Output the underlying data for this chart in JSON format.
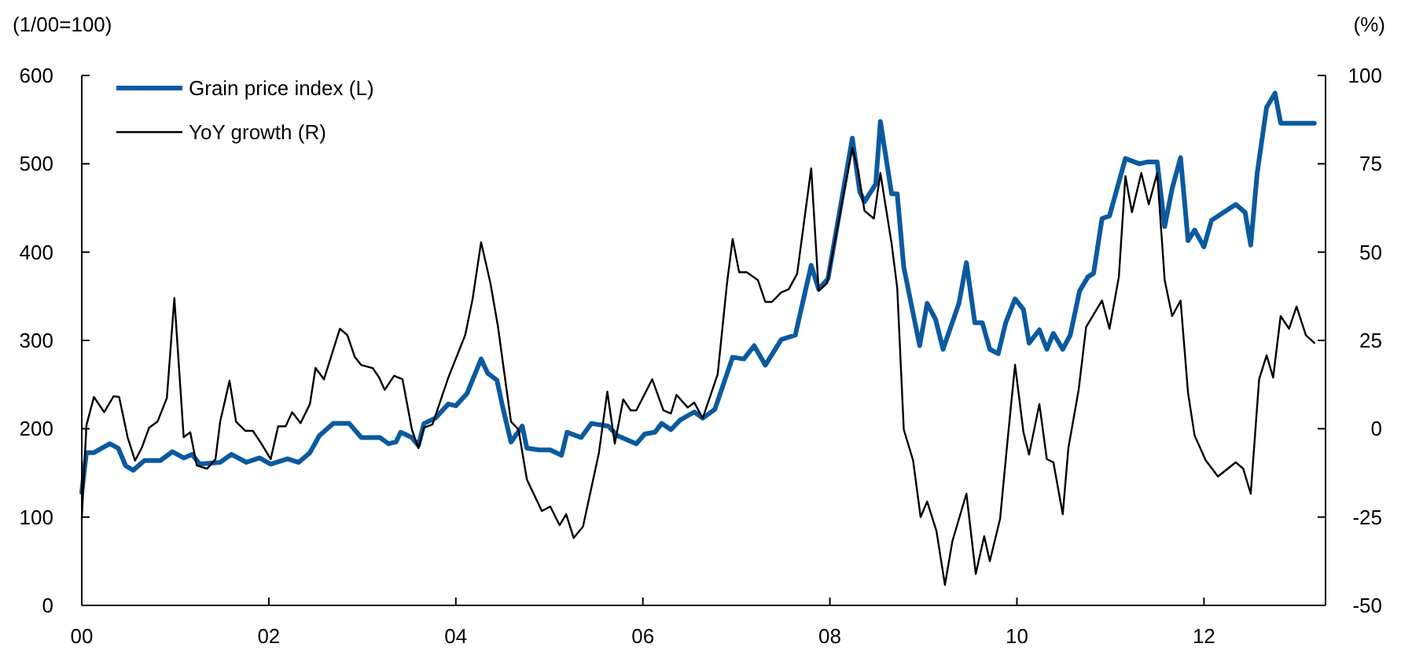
{
  "chart_data": {
    "type": "line",
    "ylabel": "(1/00=100)",
    "y2label": "(%)",
    "legend": "top left",
    "xlim": [
      2000,
      2013.3
    ],
    "xticks": [
      {
        "value": 2000,
        "label": "00"
      },
      {
        "value": 2002,
        "label": "02"
      },
      {
        "value": 2004,
        "label": "04"
      },
      {
        "value": 2006,
        "label": "06"
      },
      {
        "value": 2008,
        "label": "08"
      },
      {
        "value": 2010,
        "label": "10"
      },
      {
        "value": 2012,
        "label": "12"
      }
    ],
    "ylim": [
      0,
      600
    ],
    "yticks": [
      0,
      100,
      200,
      300,
      400,
      500,
      600
    ],
    "y2lim": [
      -50,
      100
    ],
    "y2ticks": [
      -50,
      -25,
      0,
      25,
      50,
      75,
      100
    ],
    "series": [
      {
        "name": "Grain price index (L)",
        "color": "#0a5aa0",
        "axis": "y",
        "x": [
          2000,
          2000.05,
          2000.13,
          2000.3,
          2000.39,
          2000.47,
          2000.55,
          2000.67,
          2000.84,
          2000.97,
          2001.09,
          2001.18,
          2001.26,
          2001.48,
          2001.6,
          2001.76,
          2001.9,
          2002.02,
          2002.2,
          2002.32,
          2002.44,
          2002.54,
          2002.69,
          2002.86,
          2002.99,
          2003.19,
          2003.28,
          2003.36,
          2003.41,
          2003.53,
          2003.6,
          2003.66,
          2003.78,
          2003.92,
          2004,
          2004.12,
          2004.27,
          2004.34,
          2004.44,
          2004.5,
          2004.59,
          2004.71,
          2004.76,
          2004.89,
          2005.01,
          2005.13,
          2005.19,
          2005.34,
          2005.45,
          2005.63,
          2005.73,
          2005.93,
          2006.02,
          2006.13,
          2006.2,
          2006.3,
          2006.4,
          2006.55,
          2006.64,
          2006.77,
          2006.96,
          2007.08,
          2007.19,
          2007.31,
          2007.48,
          2007.63,
          2007.8,
          2007.88,
          2007.98,
          2008.24,
          2008.32,
          2008.37,
          2008.49,
          2008.54,
          2008.66,
          2008.72,
          2008.79,
          2008.96,
          2009.04,
          2009.13,
          2009.21,
          2009.38,
          2009.46,
          2009.55,
          2009.63,
          2009.71,
          2009.8,
          2009.88,
          2009.98,
          2010.07,
          2010.13,
          2010.24,
          2010.32,
          2010.39,
          2010.49,
          2010.57,
          2010.67,
          2010.76,
          2010.82,
          2010.91,
          2010.99,
          2011.16,
          2011.31,
          2011.39,
          2011.5,
          2011.58,
          2011.66,
          2011.75,
          2011.83,
          2011.9,
          2012,
          2012.08,
          2012.34,
          2012.44,
          2012.5,
          2012.57,
          2012.67,
          2012.76,
          2012.82,
          2013.18
        ],
        "values": [
          128,
          173,
          173,
          183,
          178,
          158,
          153,
          164,
          164,
          174,
          167,
          171,
          160,
          162,
          171,
          162,
          167,
          160,
          166,
          162,
          173,
          192,
          206,
          206,
          190,
          190,
          183,
          185,
          196,
          190,
          181,
          206,
          212,
          228,
          226,
          240,
          279,
          263,
          255,
          225,
          185,
          203,
          178,
          176,
          176,
          170,
          196,
          190,
          206,
          203,
          192,
          183,
          194,
          196,
          206,
          199,
          210,
          219,
          212,
          222,
          281,
          279,
          294,
          272,
          301,
          306,
          385,
          358,
          370,
          529,
          468,
          457,
          477,
          548,
          466,
          466,
          383,
          294,
          342,
          324,
          290,
          342,
          388,
          320,
          320,
          290,
          285,
          320,
          347,
          335,
          297,
          312,
          290,
          308,
          290,
          306,
          356,
          372,
          376,
          438,
          441,
          506,
          500,
          502,
          502,
          429,
          472,
          507,
          413,
          425,
          406,
          436,
          454,
          445,
          408,
          490,
          564,
          580,
          546,
          546
        ]
      },
      {
        "name": "YoY growth (R)",
        "color": "#000000",
        "axis": "y2",
        "x": [
          2000,
          2000.05,
          2000.13,
          2000.24,
          2000.34,
          2000.4,
          2000.49,
          2000.57,
          2000.64,
          2000.72,
          2000.81,
          2000.91,
          2000.99,
          2001.09,
          2001.16,
          2001.23,
          2001.34,
          2001.43,
          2001.48,
          2001.58,
          2001.65,
          2001.75,
          2001.83,
          2001.92,
          2002.02,
          2002.1,
          2002.18,
          2002.25,
          2002.34,
          2002.44,
          2002.5,
          2002.59,
          2002.76,
          2002.84,
          2002.92,
          2002.99,
          2003.11,
          2003.18,
          2003.24,
          2003.34,
          2003.43,
          2003.53,
          2003.6,
          2003.66,
          2003.75,
          2003.92,
          2004.1,
          2004.18,
          2004.27,
          2004.37,
          2004.45,
          2004.59,
          2004.67,
          2004.76,
          2004.92,
          2005.01,
          2005.11,
          2005.18,
          2005.26,
          2005.36,
          2005.53,
          2005.62,
          2005.7,
          2005.79,
          2005.87,
          2005.93,
          2006.1,
          2006.22,
          2006.3,
          2006.36,
          2006.48,
          2006.55,
          2006.64,
          2006.8,
          2006.9,
          2006.96,
          2007.03,
          2007.11,
          2007.23,
          2007.31,
          2007.38,
          2007.48,
          2007.56,
          2007.65,
          2007.8,
          2007.88,
          2007.97,
          2008.24,
          2008.3,
          2008.37,
          2008.47,
          2008.54,
          2008.66,
          2008.72,
          2008.79,
          2008.89,
          2008.97,
          2009.04,
          2009.14,
          2009.23,
          2009.31,
          2009.46,
          2009.56,
          2009.65,
          2009.71,
          2009.82,
          2009.9,
          2009.98,
          2010.07,
          2010.13,
          2010.24,
          2010.32,
          2010.39,
          2010.49,
          2010.55,
          2010.66,
          2010.74,
          2010.91,
          2010.99,
          2011.09,
          2011.16,
          2011.23,
          2011.33,
          2011.41,
          2011.5,
          2011.58,
          2011.66,
          2011.75,
          2011.83,
          2011.9,
          2012.02,
          2012.15,
          2012.34,
          2012.42,
          2012.5,
          2012.59,
          2012.67,
          2012.74,
          2012.82,
          2012.91,
          2012.99,
          2013.09,
          2013.18
        ],
        "values": [
          -25.5,
          1,
          9,
          4.7,
          9.2,
          9,
          -2.4,
          -9,
          -5.5,
          0.3,
          2,
          8.7,
          37,
          -2.4,
          -1,
          -10.4,
          -11.3,
          -8.6,
          2,
          13.6,
          2,
          -0.6,
          -0.6,
          -4.2,
          -8.6,
          0.7,
          0.7,
          4.7,
          1.6,
          7,
          17.2,
          14,
          28.3,
          26.5,
          20.3,
          18,
          17.2,
          14.5,
          11,
          15,
          14,
          -0.2,
          -5.5,
          0.3,
          1.2,
          14.5,
          26.5,
          36.8,
          52.8,
          41.2,
          29,
          2,
          -0.2,
          -14.4,
          -23.3,
          -22,
          -27.3,
          -24.2,
          -30.9,
          -27.7,
          -6.8,
          10.5,
          -4.2,
          8.3,
          5.2,
          5.2,
          14,
          5.2,
          4.3,
          9.6,
          6,
          7.4,
          3,
          15.4,
          41.2,
          53.7,
          44.3,
          44.3,
          42.1,
          35.9,
          35.9,
          38.6,
          39.5,
          43.9,
          73.7,
          39,
          41.2,
          79.5,
          73.3,
          61.7,
          59.5,
          72.4,
          52.4,
          39.9,
          -0.2,
          -9,
          -25,
          -20.6,
          -29,
          -44.2,
          -31.8,
          -18.4,
          -41.1,
          -30.4,
          -37.5,
          -25.5,
          -3.3,
          18.1,
          -1,
          -7.3,
          7,
          -8.6,
          -9.5,
          -24.2,
          -5.5,
          11,
          28.8,
          36.3,
          28.3,
          43,
          71.5,
          61.3,
          72.4,
          63.5,
          72.4,
          42.1,
          31.9,
          36.3,
          10.1,
          -1.9,
          -9,
          -13.5,
          -9.5,
          -11.3,
          -18.4,
          14,
          20.8,
          14.5,
          31.9,
          28.3,
          34.6,
          26.5,
          24.3
        ]
      }
    ]
  }
}
